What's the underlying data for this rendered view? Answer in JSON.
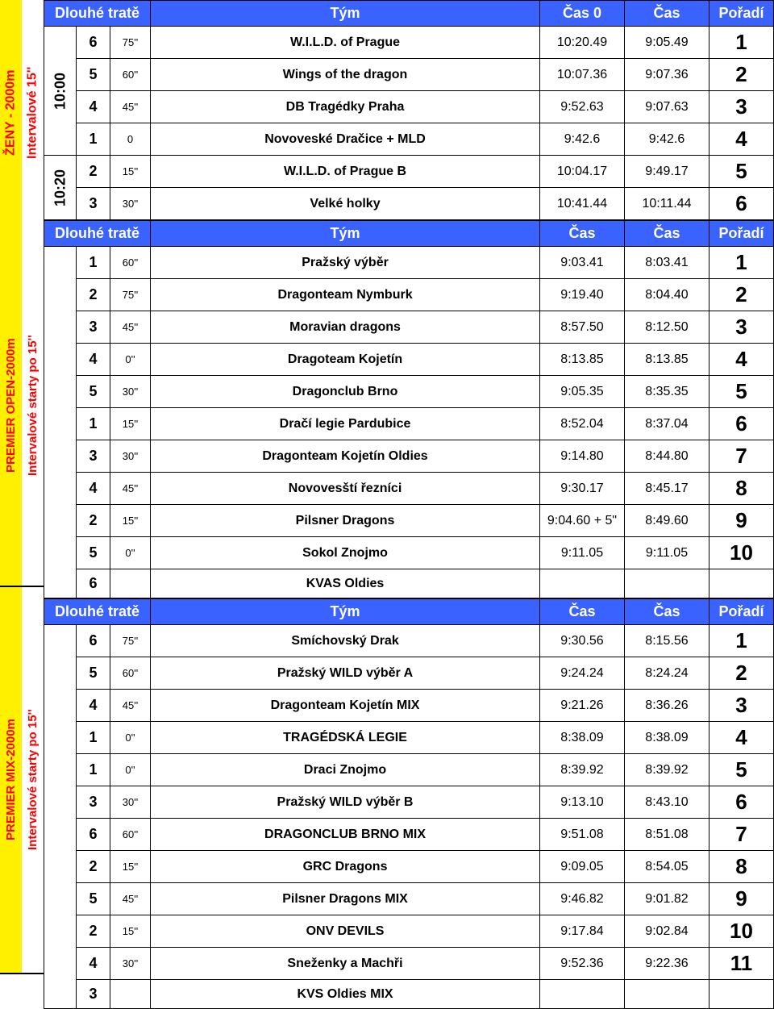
{
  "colors": {
    "header_bg": "#3962ff",
    "header_fg": "#ffffff",
    "sidebar_bg": "#fff000",
    "sidebar_fg": "#ff0000"
  },
  "sidebars": [
    {
      "category": "ŽENY - 2000m",
      "sub": "Intervalové 15''"
    },
    {
      "category": "PREMIER OPEN-2000m",
      "sub": "Intervalové starty po 15''"
    },
    {
      "category": "PREMIER MIX-2000m",
      "sub": "Intervalové starty po 15''"
    }
  ],
  "sections": [
    {
      "header": {
        "long": "Dlouhé tratě",
        "team": "Tým",
        "cas0": "Čas 0",
        "cas": "Čas",
        "rank": "Pořadí"
      },
      "time_labels": [
        "10:00",
        "10:20"
      ],
      "rows": [
        {
          "time_idx": 0,
          "lane": "6",
          "hcp": "75''",
          "team": "W.I.L.D. of Prague",
          "c0": "10:20.49",
          "c1": "9:05.49",
          "rank": "1"
        },
        {
          "time_idx": 0,
          "lane": "5",
          "hcp": "60''",
          "team": "Wings of the dragon",
          "c0": "10:07.36",
          "c1": "9:07.36",
          "rank": "2"
        },
        {
          "time_idx": 0,
          "lane": "4",
          "hcp": "45''",
          "team": "DB Tragédky Praha",
          "c0": "9:52.63",
          "c1": "9:07.63",
          "rank": "3"
        },
        {
          "time_idx": 0,
          "lane": "1",
          "hcp": "0",
          "team": "Novoveské Dračice + MLD",
          "c0": "9:42.6",
          "c1": "9:42.6",
          "rank": "4"
        },
        {
          "time_idx": 1,
          "lane": "2",
          "hcp": "15''",
          "team": "W.I.L.D. of Prague B",
          "c0": "10:04.17",
          "c1": "9:49.17",
          "rank": "5"
        },
        {
          "time_idx": 1,
          "lane": "3",
          "hcp": "30''",
          "team": "Velké holky",
          "c0": "10:41.44",
          "c1": "10:11.44",
          "rank": "6"
        }
      ]
    },
    {
      "header": {
        "long": "Dlouhé tratě",
        "team": "Tým",
        "cas0": "Čas",
        "cas": "Čas",
        "rank": "Pořadí"
      },
      "rows": [
        {
          "lane": "1",
          "hcp": "60''",
          "team": "Pražský výběr",
          "c0": "9:03.41",
          "c1": "8:03.41",
          "rank": "1"
        },
        {
          "lane": "2",
          "hcp": "75''",
          "team": "Dragonteam Nymburk",
          "c0": "9:19.40",
          "c1": "8:04.40",
          "rank": "2"
        },
        {
          "lane": "3",
          "hcp": "45''",
          "team": "Moravian dragons",
          "c0": "8:57.50",
          "c1": "8:12.50",
          "rank": "3"
        },
        {
          "lane": "4",
          "hcp": "0''",
          "team": "Dragoteam Kojetín",
          "c0": "8:13.85",
          "c1": "8:13.85",
          "rank": "4"
        },
        {
          "lane": "5",
          "hcp": "30''",
          "team": "Dragonclub Brno",
          "c0": "9:05.35",
          "c1": "8:35.35",
          "rank": "5"
        },
        {
          "lane": "1",
          "hcp": "15''",
          "team": "Dračí legie Pardubice",
          "c0": "8:52.04",
          "c1": "8:37.04",
          "rank": "6"
        },
        {
          "lane": "3",
          "hcp": "30''",
          "team": "Dragonteam Kojetín Oldies",
          "c0": "9:14.80",
          "c1": "8:44.80",
          "rank": "7"
        },
        {
          "lane": "4",
          "hcp": "45''",
          "team": "Novovesští řezníci",
          "c0": "9:30.17",
          "c1": "8:45.17",
          "rank": "8"
        },
        {
          "lane": "2",
          "hcp": "15''",
          "team": "Pilsner Dragons",
          "c0": "9:04.60 + 5\"",
          "c1": "8:49.60",
          "rank": "9"
        },
        {
          "lane": "5",
          "hcp": "0''",
          "team": "Sokol Znojmo",
          "c0": "9:11.05",
          "c1": "9:11.05",
          "rank": "10"
        },
        {
          "lane": "6",
          "hcp": "",
          "team": "KVAS Oldies",
          "c0": "",
          "c1": "",
          "rank": ""
        }
      ]
    },
    {
      "header": {
        "long": "Dlouhé tratě",
        "team": "Tým",
        "cas0": "Čas",
        "cas": "Čas",
        "rank": "Pořadí"
      },
      "rows": [
        {
          "lane": "6",
          "hcp": "75''",
          "team": "Smíchovský Drak",
          "c0": "9:30.56",
          "c1": "8:15.56",
          "rank": "1"
        },
        {
          "lane": "5",
          "hcp": "60''",
          "team": "Pražský WILD výběr A",
          "c0": "9:24.24",
          "c1": "8:24.24",
          "rank": "2"
        },
        {
          "lane": "4",
          "hcp": "45''",
          "team": "Dragonteam Kojetín MIX",
          "c0": "9:21.26",
          "c1": "8:36.26",
          "rank": "3"
        },
        {
          "lane": "1",
          "hcp": "0''",
          "team": "TRAGÉDSKÁ LEGIE",
          "c0": "8:38.09",
          "c1": "8:38.09",
          "rank": "4"
        },
        {
          "lane": "1",
          "hcp": "0''",
          "team": "Draci Znojmo",
          "c0": "8:39.92",
          "c1": "8:39.92",
          "rank": "5"
        },
        {
          "lane": "3",
          "hcp": "30''",
          "team": "Pražský WILD výběr B",
          "c0": "9:13.10",
          "c1": "8:43.10",
          "rank": "6"
        },
        {
          "lane": "6",
          "hcp": "60''",
          "team": "DRAGONCLUB BRNO MIX",
          "c0": "9:51.08",
          "c1": "8:51.08",
          "rank": "7"
        },
        {
          "lane": "2",
          "hcp": "15''",
          "team": "GRC Dragons",
          "c0": "9:09.05",
          "c1": "8:54.05",
          "rank": "8"
        },
        {
          "lane": "5",
          "hcp": "45''",
          "team": "Pilsner Dragons MIX",
          "c0": "9:46.82",
          "c1": "9:01.82",
          "rank": "9"
        },
        {
          "lane": "2",
          "hcp": "15''",
          "team": "ONV DEVILS",
          "c0": "9:17.84",
          "c1": "9:02.84",
          "rank": "10"
        },
        {
          "lane": "4",
          "hcp": "30''",
          "team": "Sneženky a Machři",
          "c0": "9:52.36",
          "c1": "9:22.36",
          "rank": "11"
        },
        {
          "lane": "3",
          "hcp": "",
          "team": "KVS Oldies MIX",
          "c0": "",
          "c1": "",
          "rank": ""
        }
      ]
    }
  ]
}
